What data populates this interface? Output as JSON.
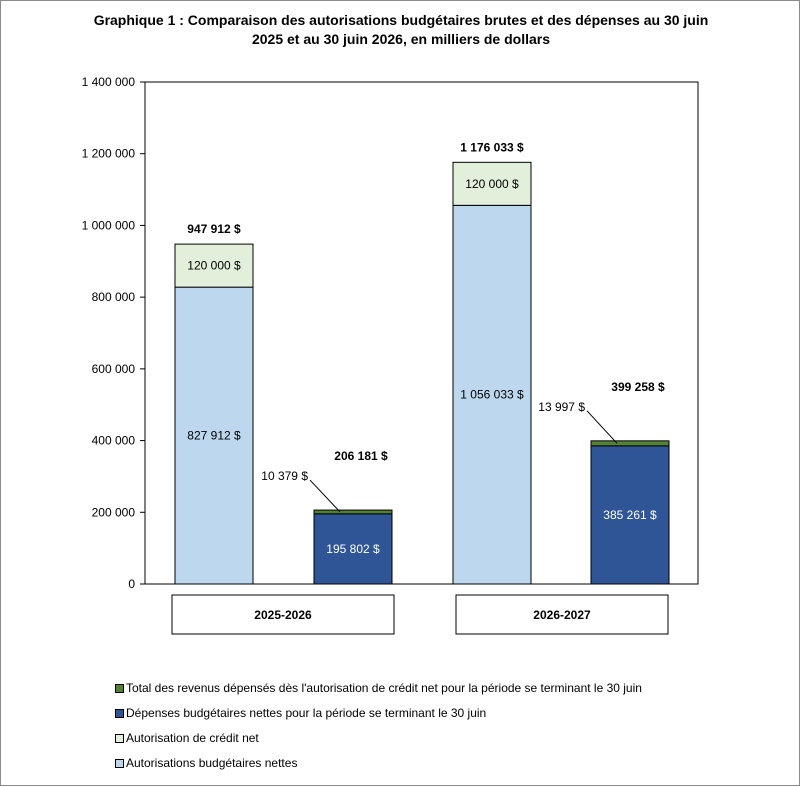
{
  "chart_data": {
    "type": "bar",
    "title_line1": "Graphique 1 : Comparaison des autorisations budgétaires brutes et des dépenses au 30 juin",
    "title_line2": "2025 et au 30 juin 2026, en milliers de dollars",
    "ylim": [
      0,
      1400000
    ],
    "yticks": [
      {
        "value": 0,
        "label": "0"
      },
      {
        "value": 200000,
        "label": "200 000"
      },
      {
        "value": 400000,
        "label": "400 000"
      },
      {
        "value": 600000,
        "label": "600 000"
      },
      {
        "value": 800000,
        "label": "800 000"
      },
      {
        "value": 1000000,
        "label": "1 000 000"
      },
      {
        "value": 1200000,
        "label": "1 200 000"
      },
      {
        "value": 1400000,
        "label": "1 400 000"
      }
    ],
    "grid": false,
    "legend_position": "bottom",
    "groups": [
      "2025-2026",
      "2026-2027"
    ],
    "series": [
      {
        "name": "Autorisations budgétaires nettes",
        "color": "#bdd7ee",
        "values": [
          827912,
          1056033,
          0,
          0
        ]
      },
      {
        "name": "Autorisation de crédit net",
        "color": "#e2efda",
        "values": [
          120000,
          120000,
          0,
          0
        ]
      },
      {
        "name": "Dépenses budgétaires nettes pour la période se terminant le 30 juin",
        "color": "#2f5597",
        "values": [
          0,
          0,
          195802,
          385261
        ]
      },
      {
        "name": "Total des revenus dépensés dès l'autorisation de crédit net pour la période se terminant le 30 juin",
        "color": "#548235",
        "values": [
          0,
          0,
          10379,
          13997
        ]
      }
    ],
    "bars": [
      {
        "group": "2025-2026",
        "total_label": "947 912 $",
        "segments": [
          {
            "series": "Autorisations budgétaires nettes",
            "value": 827912,
            "label": "827 912 $"
          },
          {
            "series": "Autorisation de crédit net",
            "value": 120000,
            "label": "120 000 $"
          }
        ]
      },
      {
        "group": "2025-2026",
        "total_label": "206 181 $",
        "segments": [
          {
            "series": "Dépenses budgétaires nettes pour la période se terminant le 30 juin",
            "value": 195802,
            "label": "195 802 $"
          },
          {
            "series": "Total des revenus dépensés dès l'autorisation de crédit net pour la période se terminant le 30 juin",
            "value": 10379,
            "label": "10 379 $"
          }
        ]
      },
      {
        "group": "2026-2027",
        "total_label": "1 176 033 $",
        "segments": [
          {
            "series": "Autorisations budgétaires nettes",
            "value": 1056033,
            "label": "1 056 033 $"
          },
          {
            "series": "Autorisation de crédit net",
            "value": 120000,
            "label": "120 000 $"
          }
        ]
      },
      {
        "group": "2026-2027",
        "total_label": "399 258 $",
        "segments": [
          {
            "series": "Dépenses budgétaires nettes pour la période se terminant le 30 juin",
            "value": 385261,
            "label": "385 261 $"
          },
          {
            "series": "Total des revenus dépensés dès l'autorisation de crédit net pour la période se terminant le 30 juin",
            "value": 13997,
            "label": "13 997 $"
          }
        ]
      }
    ],
    "legend_order": [
      "Total des revenus dépensés dès l'autorisation de crédit net pour la période se terminant le 30 juin",
      "Dépenses budgétaires nettes pour la période se terminant le 30 juin",
      "Autorisation de crédit net",
      "Autorisations budgétaires nettes"
    ]
  }
}
